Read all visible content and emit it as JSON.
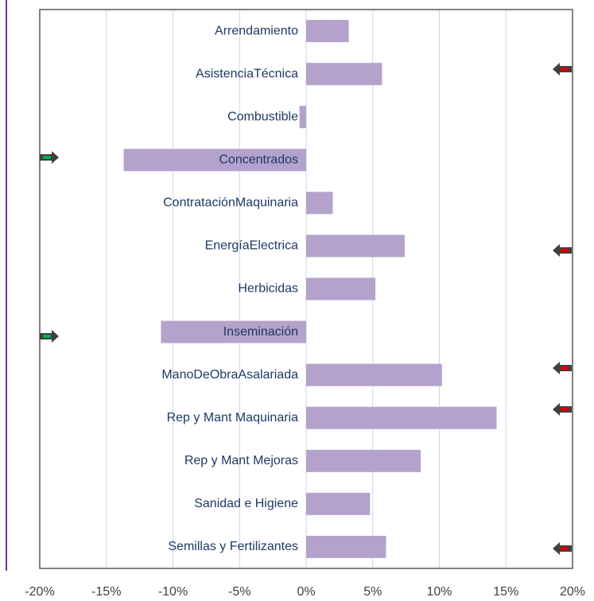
{
  "chart_data": {
    "type": "bar",
    "orientation": "horizontal",
    "categories": [
      "Arrendamiento",
      "AsistenciaTécnica",
      "Combustible",
      "Concentrados",
      "ContrataciónMaquinaria",
      "EnergíaElectrica",
      "Herbicidas",
      "Inseminación",
      "ManoDeObraAsalariada",
      "Rep y Mant Maquinaria",
      "Rep y Mant Mejoras",
      "Sanidad e Higiene",
      "Semillas y Fertilizantes"
    ],
    "values": [
      3.2,
      5.7,
      -0.5,
      -13.7,
      2.0,
      7.4,
      5.2,
      -10.9,
      10.2,
      14.3,
      8.6,
      4.8,
      6.0
    ],
    "color": "#b3a3cc",
    "xlim": [
      -20,
      20
    ],
    "xticks": [
      {
        "value": -20,
        "label": "-20%"
      },
      {
        "value": -15,
        "label": "-15%"
      },
      {
        "value": -10,
        "label": "-10%"
      },
      {
        "value": -5,
        "label": "-5%"
      },
      {
        "value": 0,
        "label": "0%"
      },
      {
        "value": 5,
        "label": "5%"
      },
      {
        "value": 10,
        "label": "10%"
      },
      {
        "value": 15,
        "label": "15%"
      },
      {
        "value": 20,
        "label": "20%"
      }
    ],
    "grid": true
  }
}
